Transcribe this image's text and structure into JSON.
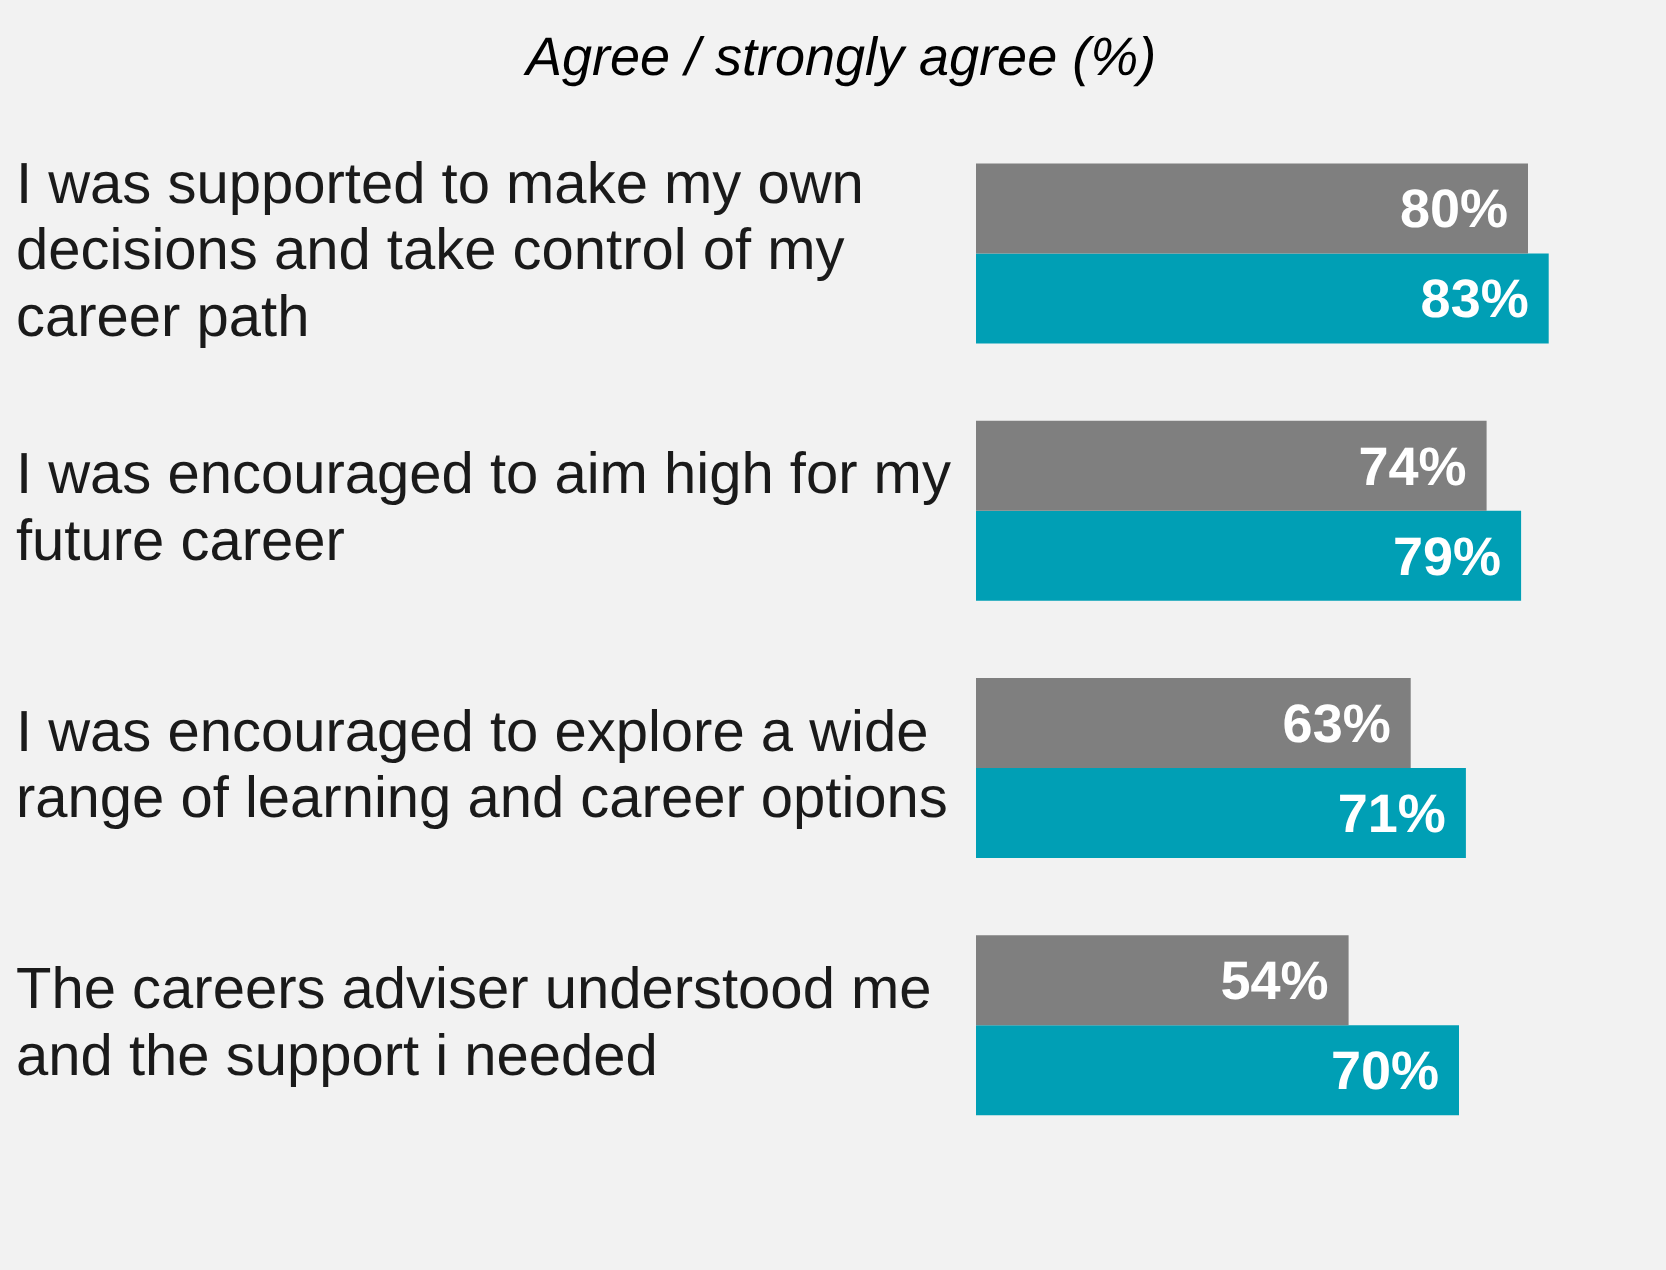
{
  "chart_data": {
    "type": "bar",
    "orientation": "horizontal",
    "title": "Agree / strongly agree (%)",
    "categories": [
      "I was supported to make my own decisions and take control of my career path",
      "I was encouraged to aim high for my future career",
      "I was encouraged to explore a wide range of learning and career options",
      "The careers adviser understood me and the support i needed"
    ],
    "series": [
      {
        "color": "#7f7f7f",
        "values": [
          80,
          74,
          63,
          54
        ],
        "value_labels": [
          "80%",
          "74%",
          "63%",
          "54%"
        ]
      },
      {
        "color": "#009fb5",
        "values": [
          83,
          79,
          71,
          70
        ],
        "value_labels": [
          "83%",
          "79%",
          "71%",
          "70%"
        ]
      }
    ],
    "legend": false
  }
}
